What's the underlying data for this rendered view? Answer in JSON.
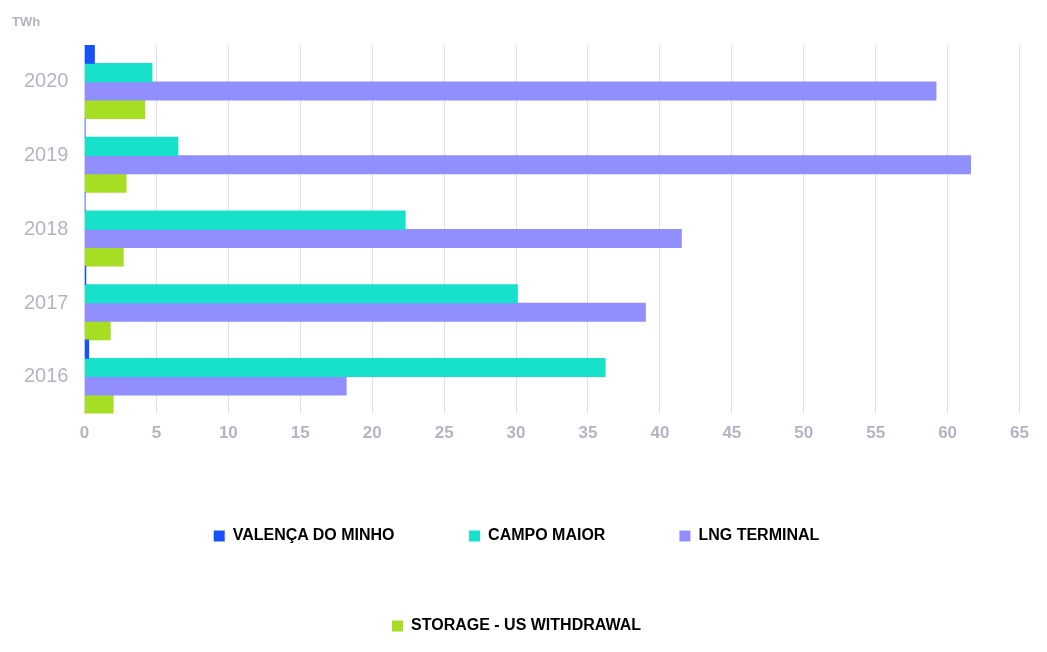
{
  "chart_data": {
    "type": "bar",
    "orientation": "horizontal",
    "ylabel": "TWh",
    "categories": [
      "2020",
      "2019",
      "2018",
      "2017",
      "2016"
    ],
    "series": [
      {
        "name": "VALENÇA DO MINHO",
        "color": "#1652fb",
        "values": [
          0.7,
          0.05,
          0.05,
          0.1,
          0.3
        ]
      },
      {
        "name": "CAMPO MAIOR",
        "color": "#17e0cb",
        "values": [
          4.7,
          6.5,
          22.3,
          30.1,
          36.2
        ]
      },
      {
        "name": "LNG TERMINAL",
        "color": "#918efd",
        "values": [
          59.2,
          61.6,
          41.5,
          39.0,
          18.2
        ]
      },
      {
        "name": "STORAGE - US WITHDRAWAL",
        "color": "#a7dd22",
        "values": [
          4.2,
          2.9,
          2.7,
          1.8,
          2.0
        ]
      }
    ],
    "xlim": [
      0,
      65
    ],
    "xticks": [
      0,
      5,
      10,
      15,
      20,
      25,
      30,
      35,
      40,
      45,
      50,
      55,
      60,
      65
    ],
    "grid": "x",
    "legend": "bottom"
  }
}
